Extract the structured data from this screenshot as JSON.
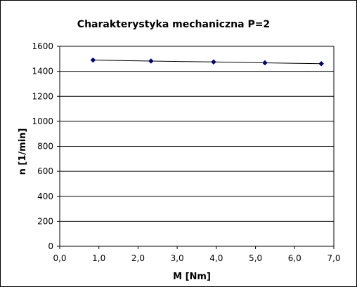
{
  "chart_data": {
    "type": "scatter",
    "title": "Charakterystyka  mechaniczna P=2",
    "xlabel": "M  [Nm]",
    "ylabel": "n  [1/min]",
    "xlim": [
      0,
      7
    ],
    "ylim": [
      0,
      1600
    ],
    "x_ticks": [
      "0,0",
      "1,0",
      "2,0",
      "3,0",
      "4,0",
      "5,0",
      "6,0",
      "7,0"
    ],
    "y_ticks": [
      "0",
      "200",
      "400",
      "600",
      "800",
      "1000",
      "1200",
      "1400",
      "1600"
    ],
    "grid": "horizontal",
    "legend": "none",
    "series": [
      {
        "x": [
          0.85,
          2.33,
          3.93,
          5.24,
          6.68
        ],
        "y": [
          1490,
          1482,
          1475,
          1468,
          1461
        ],
        "color": "#000080",
        "line_color": "#000000",
        "marker": "diamond"
      }
    ]
  }
}
